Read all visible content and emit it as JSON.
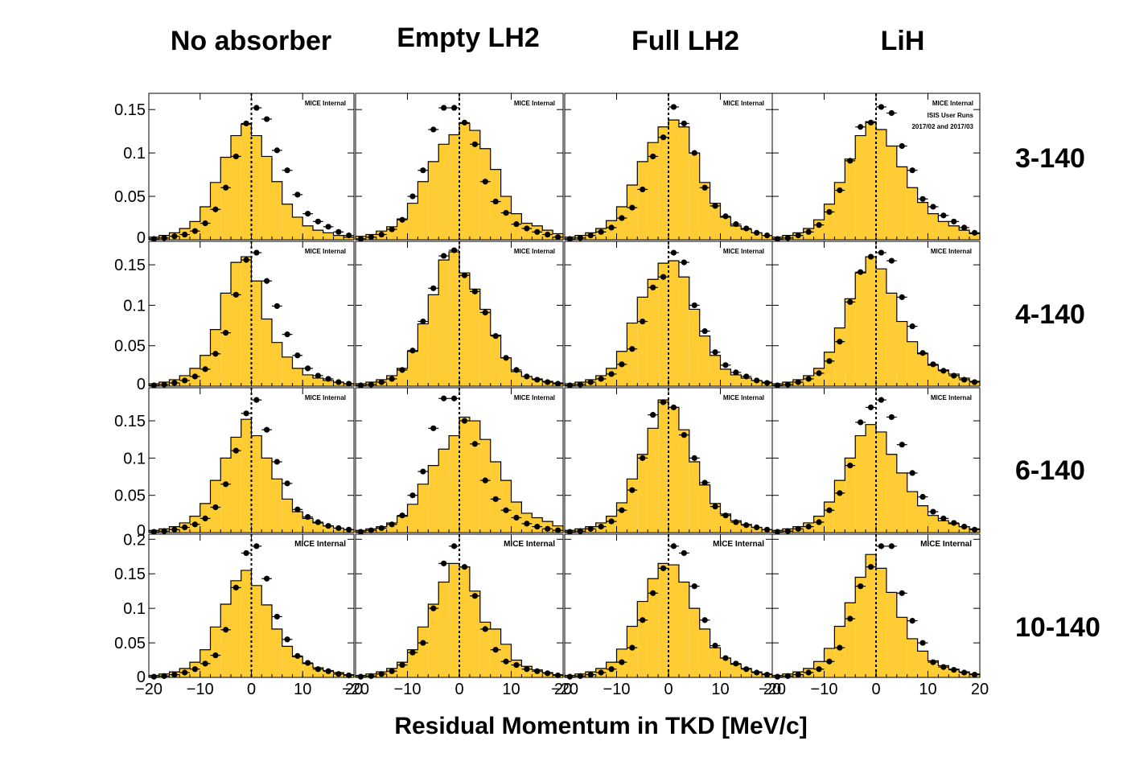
{
  "figure": {
    "columns": [
      "No absorber",
      "Empty LH2",
      "Full LH2",
      "LiH"
    ],
    "rows": [
      "3-140",
      "4-140",
      "6-140",
      "10-140"
    ],
    "xlabel": "Residual Momentum in TKD [MeV/c]",
    "tag": "MICE Internal",
    "tag_extra": [
      "ISIS User Runs",
      "2017/02 and 2017/03"
    ],
    "colors": {
      "histogram_fill": "#FFCC33",
      "outline": "#000000",
      "markers": "#000000",
      "background": "#FFFFFF"
    }
  },
  "chart_data": {
    "type": "histogram grid",
    "x_range": [
      -20,
      20
    ],
    "x_ticks": [
      -20,
      -10,
      0,
      10,
      20
    ],
    "x_tick_labels": [
      "−20",
      "−10",
      "0",
      "10",
      "20"
    ],
    "bin_centers": [
      -19,
      -17,
      -15,
      -13,
      -11,
      -9,
      -7,
      -5,
      -3,
      -1,
      1,
      3,
      5,
      7,
      9,
      11,
      13,
      15,
      17,
      19
    ],
    "reference_line_x": 0,
    "rows": [
      {
        "label": "3-140",
        "ylim": [
          0,
          0.165
        ],
        "y_ticks": [
          0,
          0.05,
          0.1,
          0.15
        ],
        "y_tick_labels": [
          "0",
          "0.05",
          "0.1",
          "0.15"
        ],
        "panels": [
          {
            "column": "No absorber",
            "histogram": [
              0.003,
              0.005,
              0.008,
              0.013,
              0.021,
              0.038,
              0.066,
              0.095,
              0.12,
              0.133,
              0.12,
              0.096,
              0.067,
              0.041,
              0.026,
              0.016,
              0.011,
              0.008,
              0.005,
              0.003
            ],
            "points": [
              0.001,
              0.002,
              0.004,
              0.006,
              0.01,
              0.019,
              0.035,
              0.06,
              0.096,
              0.134,
              0.152,
              0.139,
              0.103,
              0.08,
              0.052,
              0.03,
              0.021,
              0.015,
              0.009,
              0.005
            ]
          },
          {
            "column": "Empty LH2",
            "histogram": [
              0.004,
              0.006,
              0.01,
              0.015,
              0.024,
              0.042,
              0.067,
              0.09,
              0.11,
              0.121,
              0.134,
              0.126,
              0.105,
              0.081,
              0.05,
              0.03,
              0.019,
              0.016,
              0.011,
              0.007
            ],
            "points": [
              0.001,
              0.003,
              0.006,
              0.012,
              0.023,
              0.05,
              0.08,
              0.127,
              0.152,
              0.152,
              0.135,
              0.11,
              0.067,
              0.044,
              0.031,
              0.018,
              0.013,
              0.009,
              0.006,
              0.003
            ]
          },
          {
            "column": "Full LH2",
            "histogram": [
              0.003,
              0.005,
              0.008,
              0.013,
              0.022,
              0.038,
              0.063,
              0.09,
              0.112,
              0.13,
              0.138,
              0.13,
              0.1,
              0.066,
              0.042,
              0.026,
              0.016,
              0.012,
              0.008,
              0.005
            ],
            "points": [
              0.001,
              0.002,
              0.005,
              0.009,
              0.014,
              0.025,
              0.037,
              0.058,
              0.096,
              0.118,
              0.153,
              0.134,
              0.1,
              0.06,
              0.039,
              0.027,
              0.018,
              0.013,
              0.008,
              0.005
            ]
          },
          {
            "column": "LiH",
            "histogram": [
              0.003,
              0.005,
              0.008,
              0.013,
              0.023,
              0.041,
              0.066,
              0.093,
              0.12,
              0.136,
              0.127,
              0.108,
              0.084,
              0.06,
              0.043,
              0.03,
              0.021,
              0.016,
              0.011,
              0.007
            ],
            "points": [
              0.001,
              0.002,
              0.005,
              0.009,
              0.017,
              0.032,
              0.057,
              0.091,
              0.13,
              0.135,
              0.153,
              0.146,
              0.108,
              0.08,
              0.047,
              0.038,
              0.028,
              0.021,
              0.014,
              0.008
            ]
          }
        ]
      },
      {
        "label": "4-140",
        "ylim": [
          0,
          0.175
        ],
        "y_ticks": [
          0,
          0.05,
          0.1,
          0.15
        ],
        "y_tick_labels": [
          "0",
          "0.05",
          "0.1",
          "0.15"
        ],
        "panels": [
          {
            "column": "No absorber",
            "histogram": [
              0.003,
              0.005,
              0.008,
              0.013,
              0.022,
              0.038,
              0.07,
              0.115,
              0.153,
              0.16,
              0.13,
              0.083,
              0.054,
              0.036,
              0.022,
              0.014,
              0.01,
              0.007,
              0.005,
              0.003
            ],
            "points": [
              0.001,
              0.002,
              0.004,
              0.007,
              0.012,
              0.021,
              0.04,
              0.066,
              0.113,
              0.156,
              0.165,
              0.13,
              0.099,
              0.064,
              0.038,
              0.022,
              0.013,
              0.009,
              0.005,
              0.003
            ]
          },
          {
            "column": "Empty LH2",
            "histogram": [
              0.003,
              0.005,
              0.008,
              0.013,
              0.022,
              0.043,
              0.077,
              0.113,
              0.156,
              0.166,
              0.14,
              0.12,
              0.095,
              0.063,
              0.035,
              0.018,
              0.012,
              0.009,
              0.006,
              0.004
            ],
            "points": [
              0.001,
              0.002,
              0.005,
              0.009,
              0.02,
              0.044,
              0.08,
              0.121,
              0.161,
              0.168,
              0.137,
              0.117,
              0.091,
              0.062,
              0.035,
              0.02,
              0.012,
              0.008,
              0.005,
              0.003
            ]
          },
          {
            "column": "Full LH2",
            "histogram": [
              0.003,
              0.005,
              0.008,
              0.013,
              0.022,
              0.043,
              0.078,
              0.11,
              0.132,
              0.152,
              0.155,
              0.135,
              0.095,
              0.062,
              0.038,
              0.021,
              0.014,
              0.01,
              0.007,
              0.005
            ],
            "points": [
              0.001,
              0.002,
              0.005,
              0.009,
              0.015,
              0.027,
              0.046,
              0.08,
              0.122,
              0.135,
              0.165,
              0.153,
              0.1,
              0.068,
              0.042,
              0.026,
              0.017,
              0.012,
              0.007,
              0.004
            ]
          },
          {
            "column": "LiH",
            "histogram": [
              0.003,
              0.005,
              0.008,
              0.013,
              0.022,
              0.042,
              0.072,
              0.108,
              0.14,
              0.16,
              0.145,
              0.115,
              0.08,
              0.055,
              0.04,
              0.026,
              0.02,
              0.015,
              0.01,
              0.006
            ],
            "points": [
              0.001,
              0.002,
              0.005,
              0.009,
              0.016,
              0.031,
              0.055,
              0.104,
              0.141,
              0.16,
              0.165,
              0.155,
              0.11,
              0.074,
              0.041,
              0.027,
              0.019,
              0.013,
              0.008,
              0.005
            ]
          }
        ]
      },
      {
        "label": "6-140",
        "ylim": [
          0,
          0.19
        ],
        "y_ticks": [
          0,
          0.05,
          0.1,
          0.15
        ],
        "y_tick_labels": [
          "0",
          "0.05",
          "0.1",
          "0.15"
        ],
        "panels": [
          {
            "column": "No absorber",
            "histogram": [
              0.003,
              0.005,
              0.008,
              0.013,
              0.022,
              0.039,
              0.07,
              0.1,
              0.128,
              0.152,
              0.13,
              0.1,
              0.072,
              0.045,
              0.028,
              0.019,
              0.013,
              0.009,
              0.006,
              0.004
            ],
            "points": [
              0.001,
              0.002,
              0.004,
              0.007,
              0.011,
              0.019,
              0.034,
              0.065,
              0.11,
              0.16,
              0.178,
              0.138,
              0.095,
              0.066,
              0.031,
              0.021,
              0.014,
              0.009,
              0.006,
              0.004
            ]
          },
          {
            "column": "Empty LH2",
            "histogram": [
              0.003,
              0.005,
              0.008,
              0.013,
              0.022,
              0.038,
              0.065,
              0.09,
              0.112,
              0.13,
              0.155,
              0.15,
              0.125,
              0.095,
              0.07,
              0.041,
              0.026,
              0.02,
              0.015,
              0.009
            ],
            "points": [
              0.001,
              0.003,
              0.006,
              0.011,
              0.023,
              0.05,
              0.082,
              0.14,
              0.18,
              0.18,
              0.15,
              0.119,
              0.07,
              0.045,
              0.03,
              0.02,
              0.012,
              0.008,
              0.005,
              0.003
            ]
          },
          {
            "column": "Full LH2",
            "histogram": [
              0.003,
              0.005,
              0.008,
              0.013,
              0.022,
              0.04,
              0.072,
              0.105,
              0.14,
              0.178,
              0.168,
              0.138,
              0.095,
              0.064,
              0.039,
              0.025,
              0.016,
              0.011,
              0.007,
              0.004
            ],
            "points": [
              0.001,
              0.002,
              0.005,
              0.008,
              0.015,
              0.03,
              0.057,
              0.1,
              0.158,
              0.175,
              0.168,
              0.131,
              0.1,
              0.067,
              0.035,
              0.023,
              0.014,
              0.01,
              0.007,
              0.004
            ]
          },
          {
            "column": "LiH",
            "histogram": [
              0.003,
              0.005,
              0.008,
              0.013,
              0.022,
              0.041,
              0.07,
              0.1,
              0.13,
              0.145,
              0.135,
              0.105,
              0.08,
              0.055,
              0.036,
              0.023,
              0.016,
              0.012,
              0.008,
              0.005
            ],
            "points": [
              0.001,
              0.002,
              0.005,
              0.008,
              0.014,
              0.03,
              0.053,
              0.09,
              0.148,
              0.168,
              0.178,
              0.155,
              0.118,
              0.08,
              0.048,
              0.028,
              0.019,
              0.013,
              0.008,
              0.004
            ]
          }
        ]
      },
      {
        "label": "10-140",
        "ylim": [
          0,
          0.205
        ],
        "y_ticks": [
          0,
          0.05,
          0.1,
          0.15,
          0.2
        ],
        "y_tick_labels": [
          "0",
          "0.05",
          "0.1",
          "0.15",
          "0.2"
        ],
        "panels": [
          {
            "column": "No absorber",
            "histogram": [
              0.003,
              0.005,
              0.008,
              0.013,
              0.022,
              0.04,
              0.073,
              0.106,
              0.14,
              0.155,
              0.133,
              0.105,
              0.07,
              0.045,
              0.03,
              0.02,
              0.014,
              0.01,
              0.007,
              0.004
            ],
            "points": [
              0.001,
              0.002,
              0.004,
              0.007,
              0.012,
              0.02,
              0.032,
              0.069,
              0.13,
              0.18,
              0.19,
              0.143,
              0.088,
              0.055,
              0.031,
              0.021,
              0.012,
              0.009,
              0.005,
              0.003
            ]
          },
          {
            "column": "Empty LH2",
            "histogram": [
              0.003,
              0.005,
              0.008,
              0.013,
              0.022,
              0.04,
              0.073,
              0.106,
              0.138,
              0.165,
              0.16,
              0.125,
              0.08,
              0.07,
              0.048,
              0.025,
              0.016,
              0.011,
              0.007,
              0.004
            ],
            "points": [
              0.001,
              0.002,
              0.005,
              0.009,
              0.018,
              0.036,
              0.05,
              0.1,
              0.165,
              0.19,
              0.16,
              0.118,
              0.07,
              0.04,
              0.023,
              0.018,
              0.012,
              0.009,
              0.006,
              0.003
            ]
          },
          {
            "column": "Full LH2",
            "histogram": [
              0.003,
              0.005,
              0.008,
              0.013,
              0.022,
              0.041,
              0.074,
              0.11,
              0.143,
              0.165,
              0.163,
              0.138,
              0.1,
              0.07,
              0.043,
              0.028,
              0.019,
              0.013,
              0.008,
              0.005
            ],
            "points": [
              0.001,
              0.002,
              0.004,
              0.007,
              0.012,
              0.022,
              0.043,
              0.083,
              0.122,
              0.158,
              0.19,
              0.18,
              0.132,
              0.083,
              0.046,
              0.028,
              0.02,
              0.012,
              0.007,
              0.004
            ]
          },
          {
            "column": "LiH",
            "histogram": [
              0.003,
              0.005,
              0.008,
              0.013,
              0.023,
              0.042,
              0.074,
              0.108,
              0.145,
              0.178,
              0.158,
              0.123,
              0.087,
              0.056,
              0.038,
              0.024,
              0.017,
              0.012,
              0.008,
              0.005
            ],
            "points": [
              0.001,
              0.002,
              0.004,
              0.007,
              0.012,
              0.023,
              0.043,
              0.085,
              0.132,
              0.16,
              0.19,
              0.19,
              0.122,
              0.082,
              0.05,
              0.022,
              0.015,
              0.011,
              0.007,
              0.004
            ]
          }
        ]
      }
    ]
  }
}
